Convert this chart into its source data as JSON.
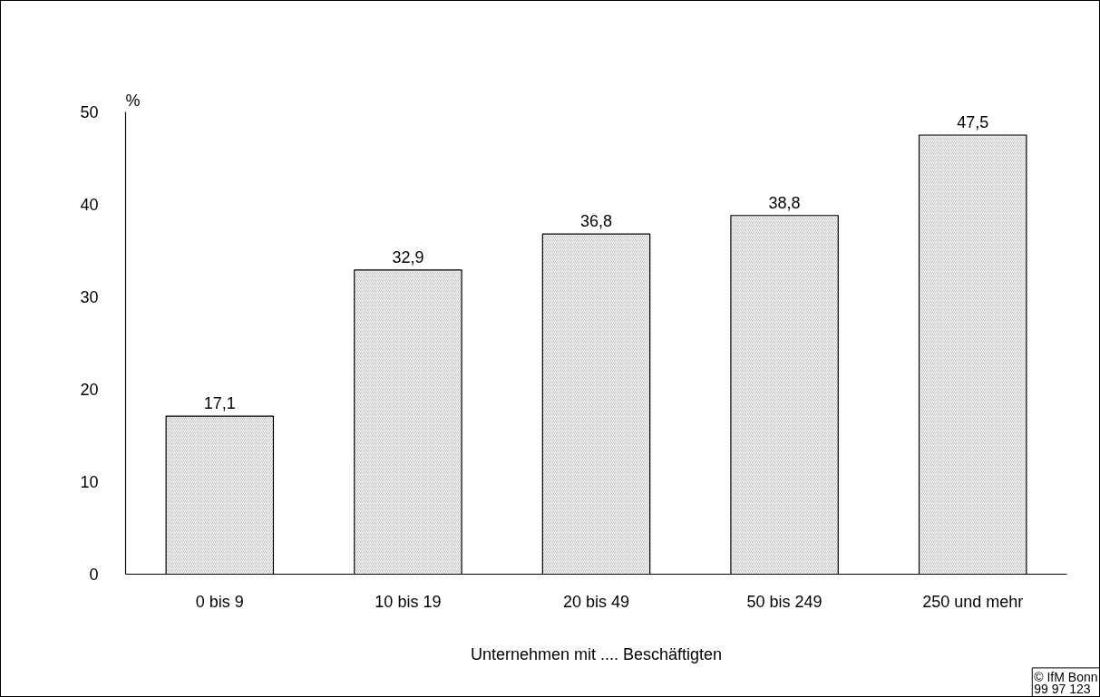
{
  "chart_data": {
    "type": "bar",
    "categories": [
      "0 bis 9",
      "10 bis 19",
      "20 bis 49",
      "50 bis 249",
      "250 und mehr"
    ],
    "values": [
      17.1,
      32.9,
      36.8,
      38.8,
      47.5
    ],
    "value_labels": [
      "17,1",
      "32,9",
      "36,8",
      "38,8",
      "47,5"
    ],
    "color": "#c8c8c8",
    "ylim": [
      0,
      50
    ],
    "yticks": [
      0,
      10,
      20,
      30,
      40,
      50
    ],
    "ylabel": "%",
    "xlabel": "Unternehmen mit .... Beschäftigten",
    "annotations": [
      "© IfM Bonn\n99  97  123"
    ],
    "grid": false
  }
}
